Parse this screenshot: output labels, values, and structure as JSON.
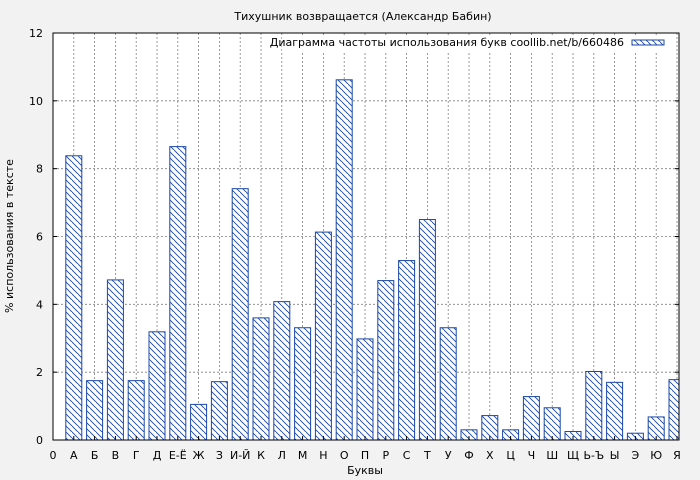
{
  "chart_data": {
    "type": "bar",
    "title": "Тихушник возвращается (Александр Бабин)",
    "xlabel": "Буквы",
    "ylabel": "% использования в тексте",
    "legend": {
      "label": "Диаграмма частоты использования букв coollib.net/b/660486",
      "position": "top-right"
    },
    "ylim": [
      0,
      12
    ],
    "yticks": [
      "0",
      "2",
      "4",
      "6",
      "8",
      "10",
      "12"
    ],
    "grid": true,
    "x_origin_label": "0",
    "categories": [
      "А",
      "Б",
      "В",
      "Г",
      "Д",
      "Е-Ё",
      "Ж",
      "З",
      "И-Й",
      "К",
      "Л",
      "М",
      "Н",
      "О",
      "П",
      "Р",
      "С",
      "Т",
      "У",
      "Ф",
      "Х",
      "Ц",
      "Ч",
      "Ш",
      "Щ",
      "Ь-Ъ",
      "Ы",
      "Э",
      "Ю",
      "Я"
    ],
    "series": [
      {
        "values": [
          8.38,
          1.75,
          4.72,
          1.75,
          3.19,
          8.65,
          1.05,
          1.72,
          7.41,
          3.6,
          4.08,
          3.31,
          6.13,
          10.62,
          2.98,
          4.7,
          5.29,
          6.5,
          3.31,
          0.3,
          0.72,
          0.3,
          1.28,
          0.95,
          0.25,
          2.02,
          1.7,
          0.2,
          0.68,
          1.78
        ]
      }
    ],
    "colors": {
      "bar_stroke": "#1a47a8",
      "hatch": "#1a47a8",
      "background": "#f2f2f2",
      "plot_bg": "#ffffff",
      "grid": "#808080"
    }
  }
}
